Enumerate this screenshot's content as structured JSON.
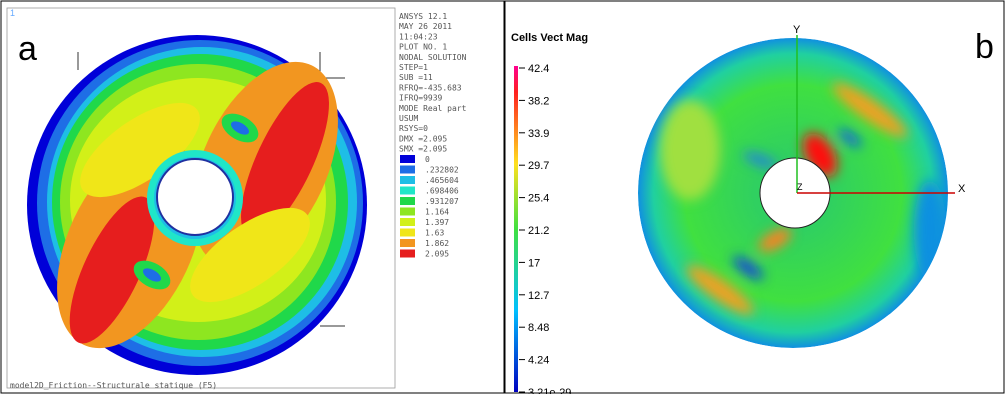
{
  "panel_a": {
    "label": "a",
    "corner_id": "1",
    "info_lines": [
      "ANSYS 12.1",
      "MAY 26 2011",
      "11:04:23",
      "PLOT NO.   1",
      "NODAL SOLUTION",
      "STEP=1",
      "SUB =11",
      "RFRQ=-435.683",
      "IFRQ=9939",
      "MODE Real part",
      "USUM",
      "RSYS=0",
      "DMX =2.095",
      "SMX =2.095"
    ],
    "legend": [
      {
        "label": "0",
        "color": "#0000d8"
      },
      {
        "label": ".232802",
        "color": "#1e6ee6"
      },
      {
        "label": ".465604",
        "color": "#1ebee6"
      },
      {
        "label": ".698406",
        "color": "#20e6c8"
      },
      {
        "label": ".931207",
        "color": "#20d84a"
      },
      {
        "label": "1.164",
        "color": "#8ee620"
      },
      {
        "label": "1.397",
        "color": "#d2f018"
      },
      {
        "label": "1.63",
        "color": "#f0e618"
      },
      {
        "label": "1.862",
        "color": "#f29620"
      },
      {
        "label": "2.095",
        "color": "#e61e1e"
      }
    ],
    "caption": "model2D_Friction--Structurale statique (F5)"
  },
  "panel_b": {
    "label": "b",
    "colorbar_title": "Cells Vect Mag",
    "colorbar_labels": [
      "42.4",
      "38.2",
      "33.9",
      "29.7",
      "25.4",
      "21.2",
      "17",
      "12.7",
      "8.48",
      "4.24",
      "3.21e-29"
    ],
    "axis_labels": {
      "y": "Y",
      "x": "X",
      "z": "Z"
    }
  }
}
